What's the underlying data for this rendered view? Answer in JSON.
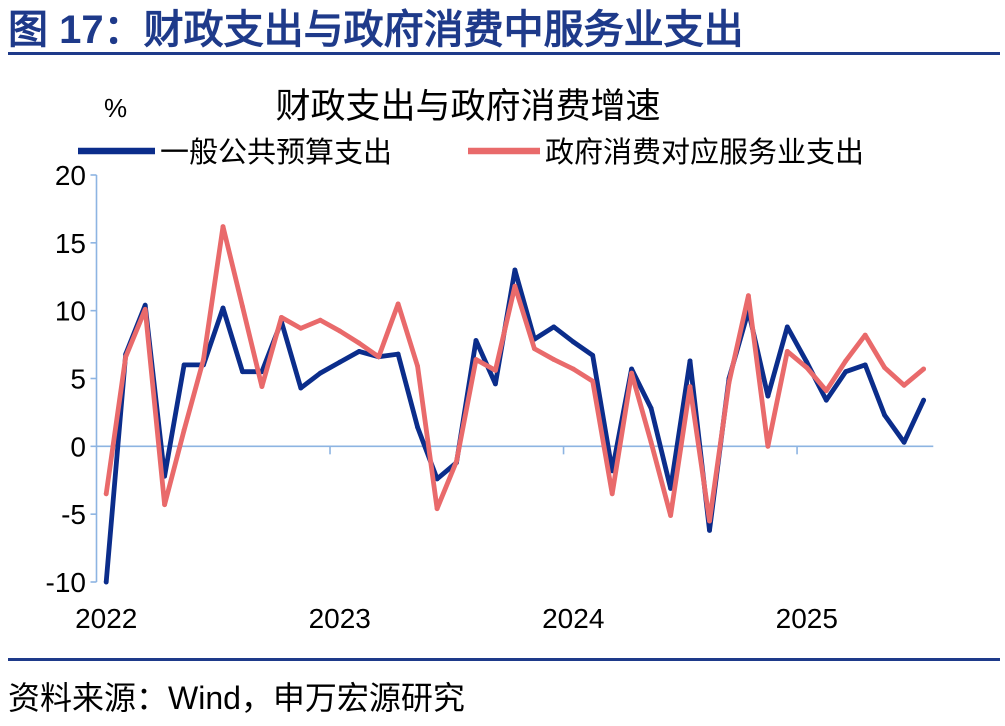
{
  "header": {
    "title": "图 17：财政支出与政府消费中服务业支出"
  },
  "footer": {
    "source": "资料来源：Wind，申万宏源研究"
  },
  "colors": {
    "accent": "#1E3A8A",
    "axis": "#8DB4E2",
    "text": "#000000"
  },
  "chart_data": {
    "type": "line",
    "title": "财政支出与政府消费增速",
    "ylabel": "%",
    "ylim": [
      -10,
      20
    ],
    "yticks": [
      -10,
      -5,
      0,
      5,
      10,
      15,
      20
    ],
    "xtick_labels": [
      "2022",
      "2023",
      "2024",
      "2025"
    ],
    "grid": false,
    "legend": "top",
    "x": [
      "2022-01",
      "2022-02",
      "2022-03",
      "2022-04",
      "2022-05",
      "2022-06",
      "2022-07",
      "2022-08",
      "2022-09",
      "2022-10",
      "2022-11",
      "2022-12",
      "2023-01",
      "2023-02",
      "2023-03",
      "2023-04",
      "2023-05",
      "2023-06",
      "2023-07",
      "2023-08",
      "2023-09",
      "2023-10",
      "2023-11",
      "2023-12",
      "2024-01",
      "2024-02",
      "2024-03",
      "2024-04",
      "2024-05",
      "2024-06",
      "2024-07",
      "2024-08",
      "2024-09",
      "2024-10",
      "2024-11",
      "2024-12",
      "2025-01",
      "2025-02",
      "2025-03",
      "2025-04",
      "2025-05",
      "2025-06",
      "2025-07"
    ],
    "series": [
      {
        "name": "一般公共预算支出",
        "color": "#0B2D8B",
        "values": [
          -10.0,
          6.8,
          10.4,
          -2.2,
          6.0,
          6.0,
          10.2,
          5.5,
          5.5,
          9.2,
          4.3,
          5.4,
          6.2,
          7.0,
          6.6,
          6.8,
          1.4,
          -2.4,
          -1.2,
          7.8,
          4.6,
          13.0,
          7.9,
          8.8,
          7.7,
          6.7,
          -1.8,
          5.7,
          2.8,
          -3.1,
          6.3,
          -6.2,
          5.0,
          10.0,
          3.7,
          8.8,
          6.2,
          3.4,
          5.5,
          6.0,
          2.3,
          0.3,
          3.4
        ]
      },
      {
        "name": "政府消费对应服务业支出",
        "color": "#E96A6B",
        "values": [
          -3.5,
          6.6,
          10.1,
          -4.3,
          1.2,
          6.4,
          16.2,
          10.3,
          4.4,
          9.5,
          8.7,
          9.3,
          8.5,
          7.6,
          6.6,
          10.5,
          5.9,
          -4.6,
          -1.1,
          6.4,
          5.6,
          11.8,
          7.2,
          6.4,
          5.7,
          4.8,
          -3.5,
          5.4,
          0.3,
          -5.1,
          4.4,
          -5.5,
          4.7,
          11.1,
          0.0,
          7.0,
          5.8,
          4.1,
          6.3,
          8.2,
          5.8,
          4.5,
          5.7
        ]
      }
    ]
  }
}
